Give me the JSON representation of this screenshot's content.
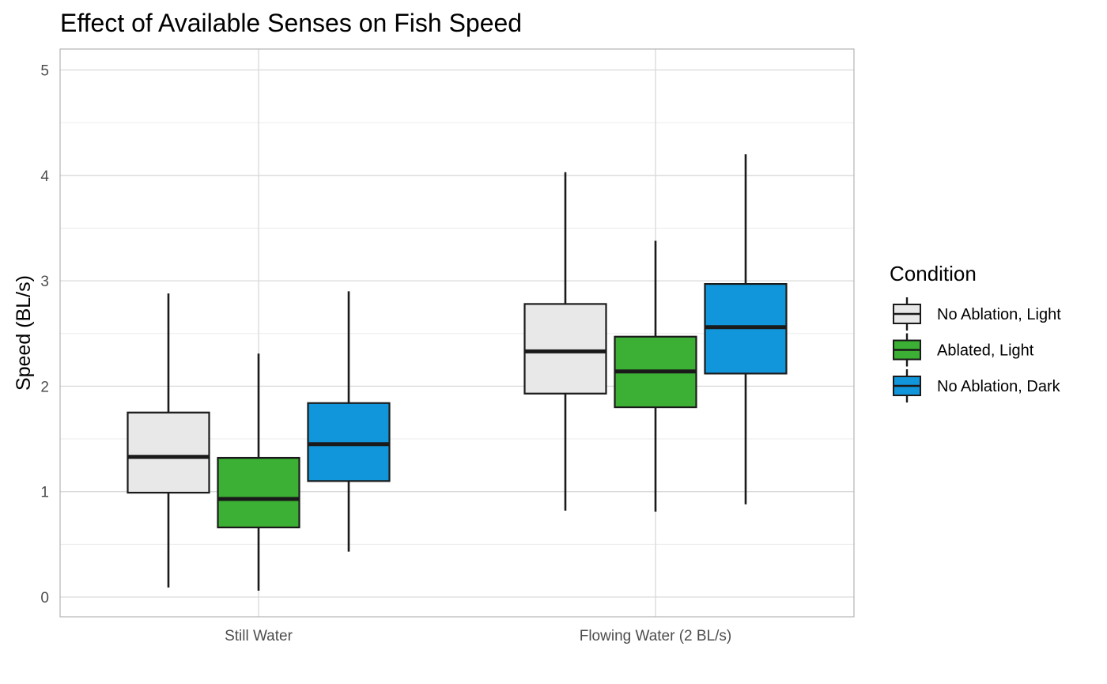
{
  "chart_data": {
    "type": "boxplot",
    "title": "Effect of Available Senses on Fish Speed",
    "xlabel": "",
    "ylabel": "Speed (BL/s)",
    "ylim": [
      -0.25,
      5.2
    ],
    "yticks": [
      0,
      1,
      2,
      3,
      4,
      5
    ],
    "y_minor_gridlines": true,
    "grid": true,
    "categories": [
      "Still Water",
      "Flowing Water (2 BL/s)"
    ],
    "legend": {
      "title": "Condition",
      "position": "right"
    },
    "series": [
      {
        "name": "No Ablation, Light",
        "color": "#e8e8e8",
        "boxes": [
          {
            "min": 0.09,
            "q1": 0.99,
            "median": 1.33,
            "q3": 1.75,
            "max": 2.88
          },
          {
            "min": 0.82,
            "q1": 1.93,
            "median": 2.33,
            "q3": 2.78,
            "max": 4.03
          }
        ]
      },
      {
        "name": "Ablated, Light",
        "color": "#3cb034",
        "boxes": [
          {
            "min": 0.06,
            "q1": 0.66,
            "median": 0.93,
            "q3": 1.32,
            "max": 2.31
          },
          {
            "min": 0.81,
            "q1": 1.8,
            "median": 2.14,
            "q3": 2.47,
            "max": 3.38
          }
        ]
      },
      {
        "name": "No Ablation, Dark",
        "color": "#1296db",
        "boxes": [
          {
            "min": 0.43,
            "q1": 1.1,
            "median": 1.45,
            "q3": 1.84,
            "max": 2.9
          },
          {
            "min": 0.88,
            "q1": 2.12,
            "median": 2.56,
            "q3": 2.97,
            "max": 4.2
          }
        ]
      }
    ]
  }
}
